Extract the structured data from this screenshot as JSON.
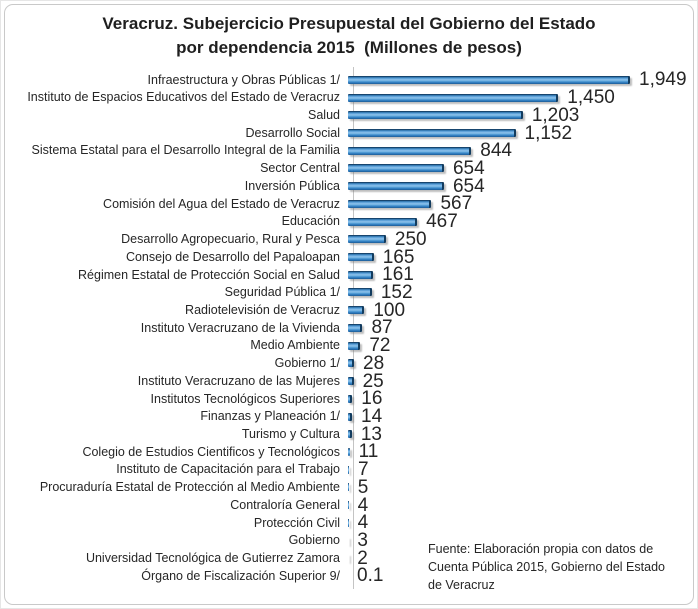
{
  "title": {
    "line1": "Veracruz. Subejercicio Presupuestal del Gobierno del Estado",
    "line2": "por dependencia 2015  (Millones de pesos)"
  },
  "source": {
    "lines": [
      "Fuente: Elaboración propia con datos de",
      "Cuenta Pública 2015, Gobierno del Estado",
      "de Veracruz"
    ]
  },
  "chart_data": {
    "type": "bar",
    "orientation": "horizontal",
    "title": "Veracruz. Subejercicio Presupuestal del Gobierno del Estado por dependencia 2015 (Millones de pesos)",
    "unit": "Millones de pesos",
    "xlim": [
      0,
      1949
    ],
    "grid": false,
    "legend": false,
    "bar_color": "#2E7CBF",
    "bar_highlight": "#8EC4EC",
    "bar_edge": "#17456E",
    "categories": [
      "Infraestructura y Obras Públicas 1/",
      "Instituto de Espacios Educativos del Estado de Veracruz",
      "Salud",
      "Desarrollo Social",
      "Sistema Estatal para el Desarrollo Integral de la Familia",
      "Sector Central",
      "Inversión Pública",
      "Comisión del Agua del Estado de Veracruz",
      "Educación",
      "Desarrollo Agropecuario, Rural y Pesca",
      "Consejo de Desarrollo del Papaloapan",
      "Régimen Estatal de Protección Social en Salud",
      "Seguridad Pública 1/",
      "Radiotelevisión de Veracruz",
      "Instituto Veracruzano de la Vivienda",
      "Medio Ambiente",
      "Gobierno 1/",
      "Instituto Veracruzano de las Mujeres",
      "Institutos Tecnológicos Superiores",
      "Finanzas y Planeación 1/",
      "Turismo y Cultura",
      "Colegio de Estudios Cientificos y Tecnológicos",
      "Instituto de Capacitación para el Trabajo",
      "Procuraduría Estatal de Protección al Medio Ambiente",
      "Contraloría General",
      "Protección Civil",
      "Gobierno",
      "Universidad Tecnológica de Gutierrez Zamora",
      "Órgano de Fiscalización Superior 9/"
    ],
    "values": [
      1949,
      1450,
      1203,
      1152,
      844,
      654,
      654,
      567,
      467,
      250,
      165,
      161,
      152,
      100,
      87,
      72,
      28,
      25,
      16,
      14,
      13,
      11,
      7,
      5,
      4,
      4,
      3,
      2,
      0.1
    ],
    "value_labels": [
      "1,949",
      "1,450",
      "1,203",
      "1,152",
      "844",
      "654",
      "654",
      "567",
      "467",
      "250",
      "165",
      "161",
      "152",
      "100",
      "87",
      "72",
      "28",
      "25",
      "16",
      "14",
      "13",
      "11",
      "7",
      "5",
      "4",
      "4",
      "3",
      "2",
      "0.1"
    ]
  }
}
